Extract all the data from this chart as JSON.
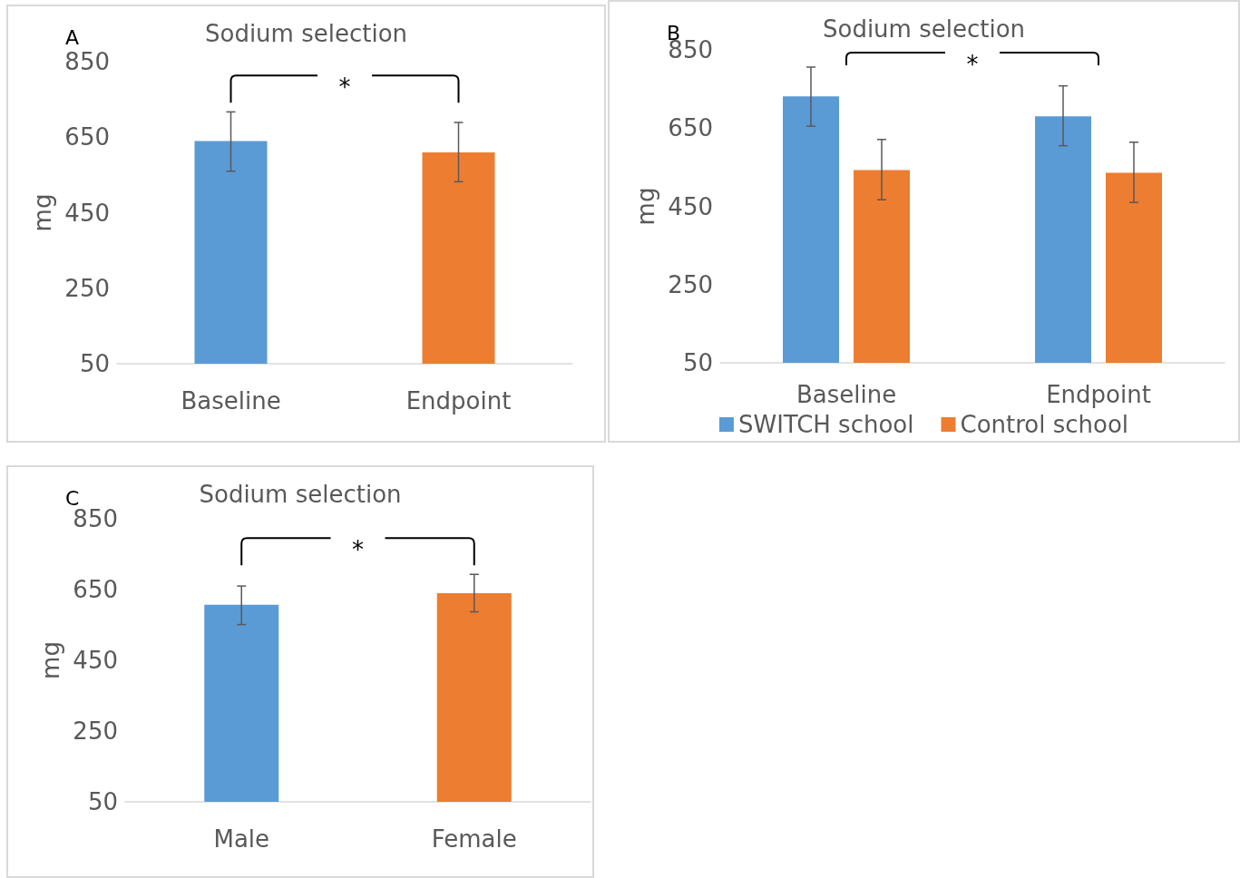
{
  "chart_data": [
    {
      "type": "bar",
      "title": "Sodium selection",
      "ylabel": "mg",
      "categories": [
        "Baseline",
        "Endpoint"
      ],
      "values": [
        640,
        610
      ],
      "colors": [
        "#5b9bd5",
        "#ed7d31"
      ],
      "errors": [
        [
          560,
          717
        ],
        [
          532,
          689
        ]
      ],
      "ylim": [
        50,
        850
      ],
      "yticks": [
        50,
        250,
        450,
        650,
        850
      ],
      "grid": false,
      "legend": false,
      "annotations": [
        "A",
        "*"
      ]
    },
    {
      "type": "bar",
      "title": "Sodium selection",
      "ylabel": "mg",
      "categories": [
        "Baseline",
        "Endpoint"
      ],
      "series": [
        {
          "name": "SWITCH school",
          "color": "#5b9bd5",
          "values": [
            731,
            680
          ],
          "errors": [
            [
              655,
              806
            ],
            [
              605,
              758
            ]
          ]
        },
        {
          "name": "Control school",
          "color": "#ed7d31",
          "values": [
            543,
            536
          ],
          "errors": [
            [
              467,
              621
            ],
            [
              460,
              614
            ]
          ]
        }
      ],
      "ylim": [
        50,
        850
      ],
      "yticks": [
        50,
        250,
        450,
        650,
        850
      ],
      "grid": false,
      "legend": "bottom",
      "annotations": [
        "B",
        "*"
      ]
    },
    {
      "type": "bar",
      "title": "Sodium selection",
      "ylabel": "mg",
      "categories": [
        "Male",
        "Female"
      ],
      "values": [
        607,
        640
      ],
      "colors": [
        "#5b9bd5",
        "#ed7d31"
      ],
      "errors": [
        [
          551,
          660
        ],
        [
          587,
          693
        ]
      ],
      "ylim": [
        50,
        850
      ],
      "yticks": [
        50,
        250,
        450,
        650,
        850
      ],
      "grid": false,
      "legend": false,
      "annotations": [
        "C",
        "*"
      ]
    }
  ]
}
